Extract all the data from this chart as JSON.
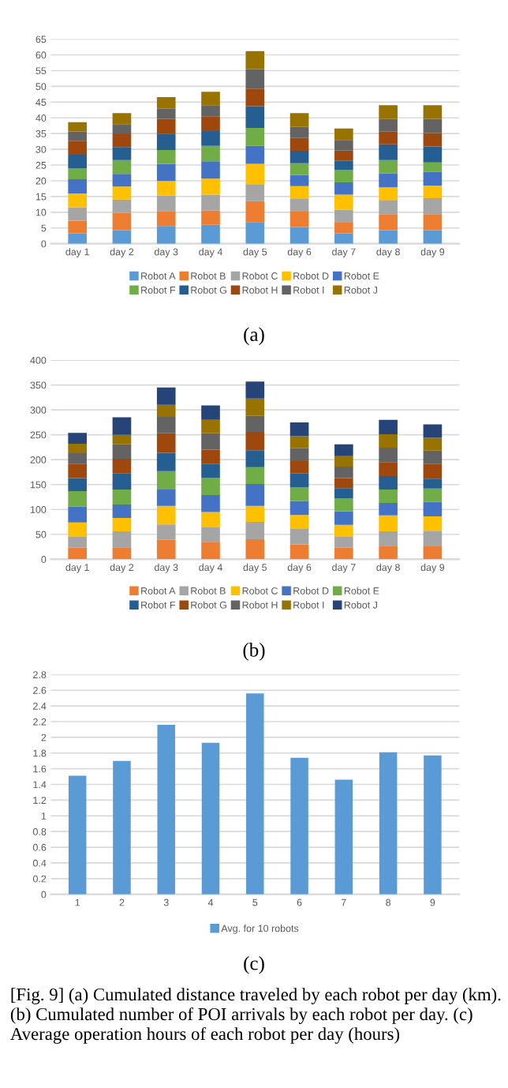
{
  "chart_data": [
    {
      "type": "bar",
      "stacked": true,
      "categories": [
        "day 1",
        "day 2",
        "day 3",
        "day 4",
        "day 5",
        "day 6",
        "day 7",
        "day 8",
        "day 9"
      ],
      "ylim": [
        0,
        65
      ],
      "yticks": [
        0,
        5,
        10,
        15,
        20,
        25,
        30,
        35,
        40,
        45,
        50,
        55,
        60,
        65
      ],
      "grid": "y",
      "legend": "bottom",
      "annotations": [
        "(a)"
      ],
      "series": [
        {
          "name": "Robot A",
          "color": "#5b9bd5",
          "values": [
            3.3,
            4.3,
            5.6,
            6.0,
            6.9,
            5.3,
            3.3,
            4.3,
            4.3
          ]
        },
        {
          "name": "Robot B",
          "color": "#ed7d31",
          "values": [
            4.0,
            5.5,
            4.8,
            4.6,
            6.6,
            4.9,
            3.4,
            5.1,
            5.1
          ]
        },
        {
          "name": "Robot C",
          "color": "#a5a5a5",
          "values": [
            4.3,
            4.2,
            4.9,
            5.0,
            5.4,
            4.2,
            4.1,
            4.5,
            5.1
          ]
        },
        {
          "name": "Robot D",
          "color": "#ffc000",
          "values": [
            4.4,
            4.2,
            4.6,
            5.1,
            6.5,
            3.9,
            4.8,
            4.0,
            4.0
          ]
        },
        {
          "name": "Robot E",
          "color": "#4472c4",
          "values": [
            4.5,
            4.0,
            5.5,
            5.5,
            5.7,
            3.5,
            3.9,
            4.5,
            4.3
          ]
        },
        {
          "name": "Robot F",
          "color": "#70ad47",
          "values": [
            3.5,
            4.4,
            4.4,
            4.9,
            5.7,
            3.8,
            4.0,
            4.2,
            3.0
          ]
        },
        {
          "name": "Robot G",
          "color": "#255e91",
          "values": [
            4.3,
            4.1,
            5.2,
            4.7,
            6.9,
            3.9,
            2.8,
            5.0,
            5.1
          ]
        },
        {
          "name": "Robot H",
          "color": "#9e480e",
          "values": [
            4.4,
            4.1,
            4.7,
            4.7,
            5.6,
            4.1,
            3.3,
            4.0,
            4.3
          ]
        },
        {
          "name": "Robot I",
          "color": "#636363",
          "values": [
            3.0,
            3.2,
            3.2,
            3.5,
            6.2,
            3.5,
            3.4,
            4.0,
            4.5
          ]
        },
        {
          "name": "Robot J",
          "color": "#997300",
          "values": [
            2.9,
            3.5,
            3.7,
            4.3,
            5.7,
            4.4,
            3.6,
            4.4,
            4.3
          ]
        }
      ]
    },
    {
      "type": "bar",
      "stacked": true,
      "categories": [
        "day 1",
        "day 2",
        "day 3",
        "day 4",
        "day 5",
        "day 6",
        "day 7",
        "day 8",
        "day 9"
      ],
      "ylim": [
        0,
        400
      ],
      "yticks": [
        0,
        50,
        100,
        150,
        200,
        250,
        300,
        350,
        400
      ],
      "grid": "y",
      "legend": "bottom",
      "annotations": [
        "(b)"
      ],
      "series": [
        {
          "name": "Robot A",
          "color": "#ed7d31",
          "values": [
            23,
            24,
            39,
            35,
            40,
            30,
            23,
            27,
            26
          ]
        },
        {
          "name": "Robot B",
          "color": "#a5a5a5",
          "values": [
            22,
            32,
            31,
            29,
            35,
            32,
            22,
            29,
            31
          ]
        },
        {
          "name": "Robot C",
          "color": "#ffc000",
          "values": [
            29,
            27,
            37,
            31,
            32,
            27,
            24,
            32,
            29
          ]
        },
        {
          "name": "Robot D",
          "color": "#4472c4",
          "values": [
            32,
            27,
            33,
            34,
            44,
            28,
            27,
            25,
            29
          ]
        },
        {
          "name": "Robot E",
          "color": "#70ad47",
          "values": [
            31,
            30,
            37,
            34,
            34,
            28,
            26,
            27,
            27
          ]
        },
        {
          "name": "Robot F",
          "color": "#255e91",
          "values": [
            26,
            33,
            37,
            29,
            34,
            27,
            21,
            27,
            20
          ]
        },
        {
          "name": "Robot G",
          "color": "#9e480e",
          "values": [
            29,
            29,
            39,
            28,
            37,
            25,
            20,
            28,
            30
          ]
        },
        {
          "name": "Robot H",
          "color": "#636363",
          "values": [
            21,
            29,
            33,
            33,
            32,
            26,
            23,
            29,
            26
          ]
        },
        {
          "name": "Robot I",
          "color": "#997300",
          "values": [
            19,
            19,
            24,
            27,
            35,
            24,
            21,
            27,
            26
          ]
        },
        {
          "name": "Robot J",
          "color": "#264478",
          "values": [
            22,
            35,
            35,
            29,
            34,
            28,
            24,
            29,
            27
          ]
        }
      ]
    },
    {
      "type": "bar",
      "categories": [
        "1",
        "2",
        "3",
        "4",
        "5",
        "6",
        "7",
        "8",
        "9"
      ],
      "ylim": [
        0,
        2.8
      ],
      "yticks": [
        0,
        0.2,
        0.4,
        0.6,
        0.8,
        1,
        1.2,
        1.4,
        1.6,
        1.8,
        2,
        2.2,
        2.4,
        2.6,
        2.8
      ],
      "grid": "y",
      "legend": "bottom",
      "annotations": [
        "(c)",
        "[Fig. 9] (a) Cumulated distance traveled by each robot per day (km). (b) Cumulated number of POI arrivals by each robot per day. (c) Average operation hours of each robot per day (hours)"
      ],
      "series": [
        {
          "name": "Avg. for 10 robots",
          "color": "#5b9bd5",
          "values": [
            1.51,
            1.7,
            2.16,
            1.93,
            2.56,
            1.74,
            1.46,
            1.81,
            1.77
          ]
        }
      ]
    }
  ]
}
